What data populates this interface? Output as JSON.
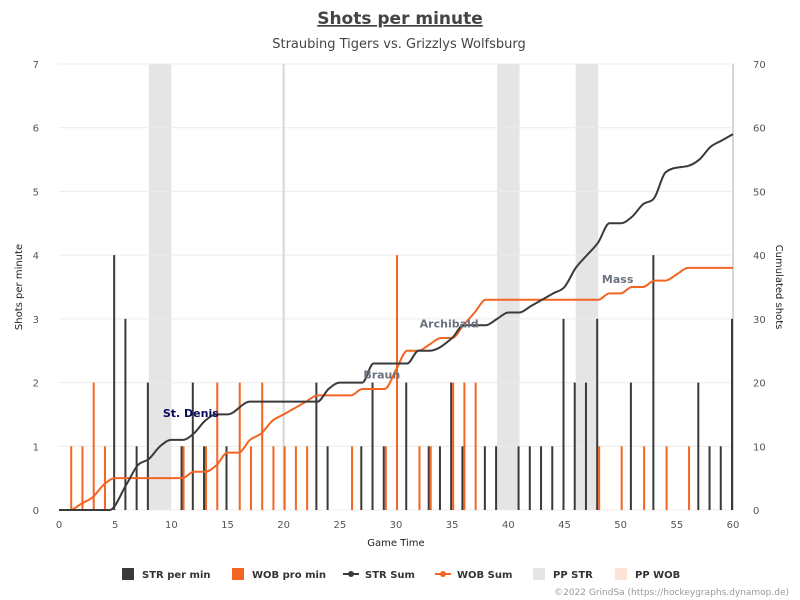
{
  "chart_data": {
    "type": "bar+line",
    "title": "Shots per minute",
    "subtitle": "Straubing Tigers vs. Grizzlys Wolfsburg",
    "xlabel": "Game Time",
    "ylabel": "Shots per minute",
    "y2label": "Cumulated shots",
    "xlim": [
      0,
      60
    ],
    "ylim": [
      0,
      7
    ],
    "y2lim": [
      0,
      70
    ],
    "xticks": [
      "0",
      "5",
      "10",
      "15",
      "20",
      "25",
      "30",
      "35",
      "40",
      "45",
      "50",
      "55",
      "60"
    ],
    "yticks": [
      "0",
      "1",
      "2",
      "3",
      "4",
      "5",
      "6",
      "7"
    ],
    "y2ticks": [
      "0",
      "10",
      "20",
      "30",
      "40",
      "50",
      "60",
      "70"
    ],
    "grid": true,
    "period_lines": [
      20,
      60
    ],
    "legend_position": "bottom",
    "colors": {
      "str": "#3a3a3a",
      "wob": "#f26522",
      "pp_str": "#e5e5e5",
      "pp_wob": "#fde3d6",
      "annot_str": "#0a0a5a",
      "annot_other": "#6b7280"
    },
    "str_per_min": {
      "name": "STR per min",
      "x": [
        5,
        6,
        7,
        8,
        11,
        12,
        13,
        15,
        23,
        24,
        27,
        28,
        29,
        31,
        33,
        34,
        35,
        36,
        38,
        39,
        41,
        42,
        43,
        44,
        45,
        46,
        47,
        48,
        51,
        53,
        57,
        58,
        59,
        60
      ],
      "values": [
        4,
        3,
        1,
        2,
        1,
        2,
        1,
        1,
        2,
        1,
        1,
        2,
        1,
        2,
        1,
        1,
        2,
        1,
        1,
        1,
        1,
        1,
        1,
        1,
        3,
        2,
        2,
        3,
        2,
        4,
        2,
        1,
        1,
        3
      ]
    },
    "wob_per_min": {
      "name": "WOB pro min",
      "x": [
        1,
        2,
        3,
        4,
        11,
        13,
        14,
        16,
        17,
        18,
        19,
        20,
        21,
        22,
        26,
        29,
        30,
        32,
        33,
        35,
        36,
        37,
        48,
        50,
        52,
        54,
        56
      ],
      "values": [
        1,
        1,
        2,
        1,
        1,
        1,
        2,
        2,
        1,
        2,
        1,
        1,
        1,
        1,
        1,
        1,
        4,
        1,
        1,
        2,
        2,
        2,
        1,
        1,
        1,
        1,
        1
      ]
    },
    "str_sum": {
      "name": "STR Sum",
      "x": [
        0,
        4.5,
        6,
        7,
        8,
        9,
        10,
        11,
        12,
        13,
        14,
        15,
        17,
        20,
        22,
        23,
        24,
        25,
        27,
        28,
        30,
        31,
        32,
        33,
        35,
        36,
        37,
        38,
        39,
        40,
        41,
        42,
        43,
        44,
        45,
        46,
        47,
        48,
        49,
        50,
        51,
        52,
        53,
        54,
        56,
        57,
        58,
        59,
        60
      ],
      "values": [
        0,
        0,
        4,
        7,
        8,
        10,
        11,
        11,
        12,
        14,
        15,
        15,
        17,
        17,
        17,
        17,
        19,
        20,
        20,
        23,
        23,
        23,
        25,
        25,
        27,
        29,
        29,
        29,
        30,
        31,
        31,
        32,
        33,
        34,
        35,
        38,
        40,
        42,
        45,
        45,
        46,
        48,
        49,
        53,
        54,
        55,
        57,
        58,
        59
      ]
    },
    "wob_sum": {
      "name": "WOB Sum",
      "x": [
        0,
        1,
        2,
        3,
        4,
        5,
        10,
        11,
        12,
        13,
        14,
        15,
        16,
        17,
        18,
        19,
        20,
        21,
        22,
        23,
        25,
        26,
        27,
        28,
        29,
        30,
        31,
        32,
        33,
        34,
        35,
        36,
        37,
        38,
        40,
        45,
        48,
        49,
        50,
        51,
        52,
        53,
        54,
        55,
        56,
        57,
        58,
        60
      ],
      "values": [
        0,
        0,
        1,
        2,
        4,
        5,
        5,
        5,
        6,
        6,
        7,
        9,
        9,
        11,
        12,
        14,
        15,
        16,
        17,
        18,
        18,
        18,
        19,
        19,
        19,
        22,
        25,
        25,
        26,
        27,
        27,
        29,
        31,
        33,
        33,
        33,
        33,
        34,
        34,
        35,
        35,
        36,
        36,
        37,
        38,
        38,
        38,
        38
      ]
    },
    "pp_str": {
      "name": "PP STR",
      "ranges": [
        [
          8,
          10
        ],
        [
          39,
          41
        ],
        [
          46,
          48
        ]
      ]
    },
    "pp_wob": {
      "name": "PP WOB",
      "ranges": []
    },
    "annotations": [
      {
        "text": "St. Denis",
        "x": 12,
        "y2": 14,
        "team": "str"
      },
      {
        "text": "Braun",
        "x": 29,
        "y2": 20,
        "team": "other"
      },
      {
        "text": "Archibald",
        "x": 35,
        "y2": 28,
        "team": "other"
      },
      {
        "text": "Mass",
        "x": 50,
        "y2": 35,
        "team": "other"
      }
    ]
  },
  "legend": [
    {
      "label": "STR per min",
      "type": "bar",
      "color": "#3a3a3a"
    },
    {
      "label": "WOB pro min",
      "type": "bar",
      "color": "#f26522"
    },
    {
      "label": "STR Sum",
      "type": "line",
      "color": "#3a3a3a"
    },
    {
      "label": "WOB Sum",
      "type": "line",
      "color": "#f26522"
    },
    {
      "label": "PP STR",
      "type": "patch",
      "color": "#e5e5e5"
    },
    {
      "label": "PP WOB",
      "type": "patch",
      "color": "#fde3d6"
    }
  ],
  "credit": "©2022 GrindSa (https://hockeygraphs.dynamop.de)"
}
